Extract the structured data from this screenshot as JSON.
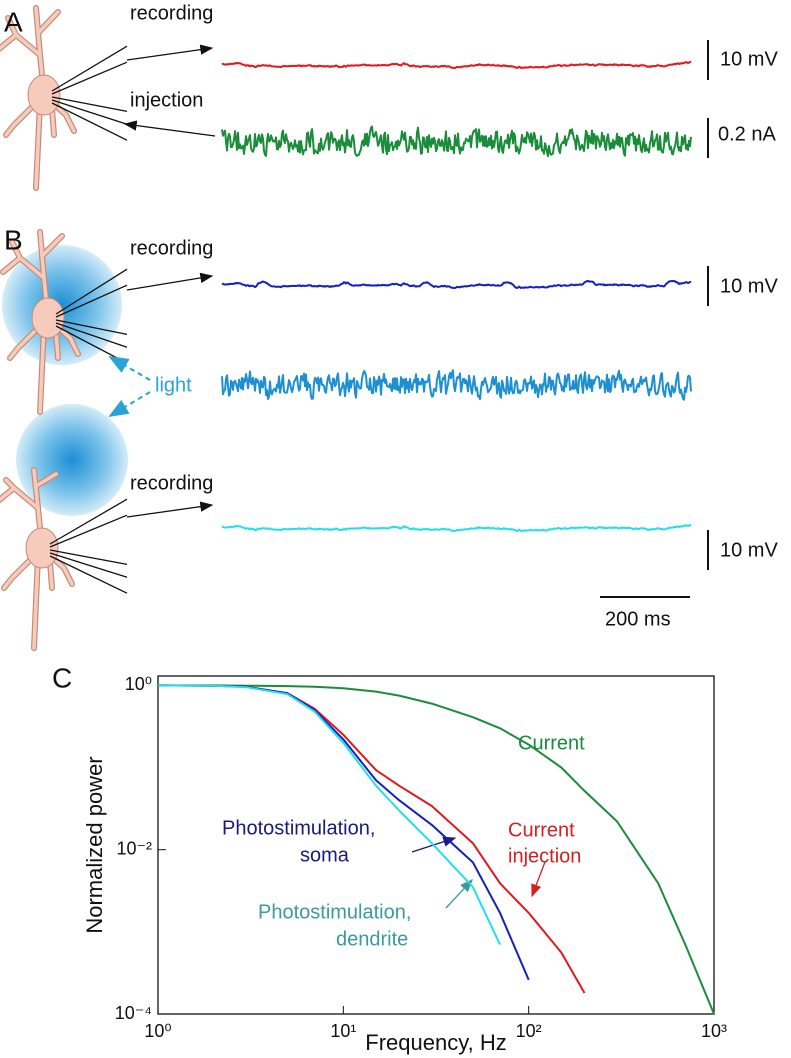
{
  "panels": {
    "a": "A",
    "b": "B",
    "c": "C"
  },
  "labels": {
    "recording_a": "recording",
    "injection": "injection",
    "recording_b1": "recording",
    "light": "light",
    "recording_b2": "recording"
  },
  "scale_bars": {
    "a_voltage": "10 mV",
    "a_current": "0.2 nA",
    "b_voltage1": "10 mV",
    "b_voltage2": "10 mV",
    "time": "200 ms"
  },
  "traces": {
    "a_recording": "#e0191f",
    "a_injection": "#1a8c3a",
    "b_recording": "#1520c0",
    "b_light": "#1e8fd0",
    "b_dendrite": "#22e0e8"
  },
  "chart_data": {
    "type": "line",
    "xlabel": "Frequency, Hz",
    "ylabel": "Normalized power",
    "log_x": true,
    "log_y": true,
    "x": [
      1,
      2,
      3,
      5,
      7,
      10,
      15,
      20,
      30,
      50,
      70,
      100,
      150,
      200,
      300,
      500,
      700,
      1000
    ],
    "xlim": [
      1,
      1000
    ],
    "xticks": [
      {
        "value": 1,
        "label": "10⁰"
      },
      {
        "value": 10,
        "label": "10¹"
      },
      {
        "value": 100,
        "label": "10²"
      },
      {
        "value": 1000,
        "label": "10³"
      }
    ],
    "ylim": [
      0.0001,
      1.3
    ],
    "yticks": [
      {
        "value": 0.0001,
        "label": "10⁻⁴"
      },
      {
        "value": 0.01,
        "label": "10⁻²"
      },
      {
        "value": 1,
        "label": "10⁰"
      }
    ],
    "series": [
      {
        "name": "Current",
        "color": "#1a8c3a",
        "values": [
          1.0,
          1.0,
          0.99,
          0.98,
          0.96,
          0.92,
          0.84,
          0.75,
          0.6,
          0.41,
          0.3,
          0.19,
          0.1,
          0.052,
          0.022,
          0.0039,
          0.0007,
          0.0001
        ]
      },
      {
        "name": "Current injection",
        "color": "#e0191f",
        "values": [
          1.0,
          0.99,
          0.96,
          0.8,
          0.52,
          0.25,
          0.093,
          0.06,
          0.034,
          0.012,
          0.0039,
          0.0017,
          0.00056,
          0.00018,
          null,
          null,
          null,
          null
        ]
      },
      {
        "name": "Photostimulation, soma",
        "color": "#1520c0",
        "values": [
          1.0,
          0.99,
          0.96,
          0.8,
          0.5,
          0.22,
          0.07,
          0.04,
          0.02,
          0.007,
          0.0017,
          0.00026,
          null,
          null,
          null,
          null,
          null,
          null
        ]
      },
      {
        "name": "Photostimulation, dendrite",
        "color": "#22e0e8",
        "values": [
          1.0,
          0.99,
          0.95,
          0.78,
          0.48,
          0.2,
          0.06,
          0.03,
          0.012,
          0.0035,
          0.0007,
          null,
          null,
          null,
          null,
          null,
          null,
          null
        ]
      }
    ],
    "annotations": {
      "current": "Current",
      "injection_1": "Current",
      "injection_2": "injection",
      "soma_1": "Photostimulation,",
      "soma_2": "soma",
      "dendrite_1": "Photostimulation,",
      "dendrite_2": "dendrite"
    }
  }
}
